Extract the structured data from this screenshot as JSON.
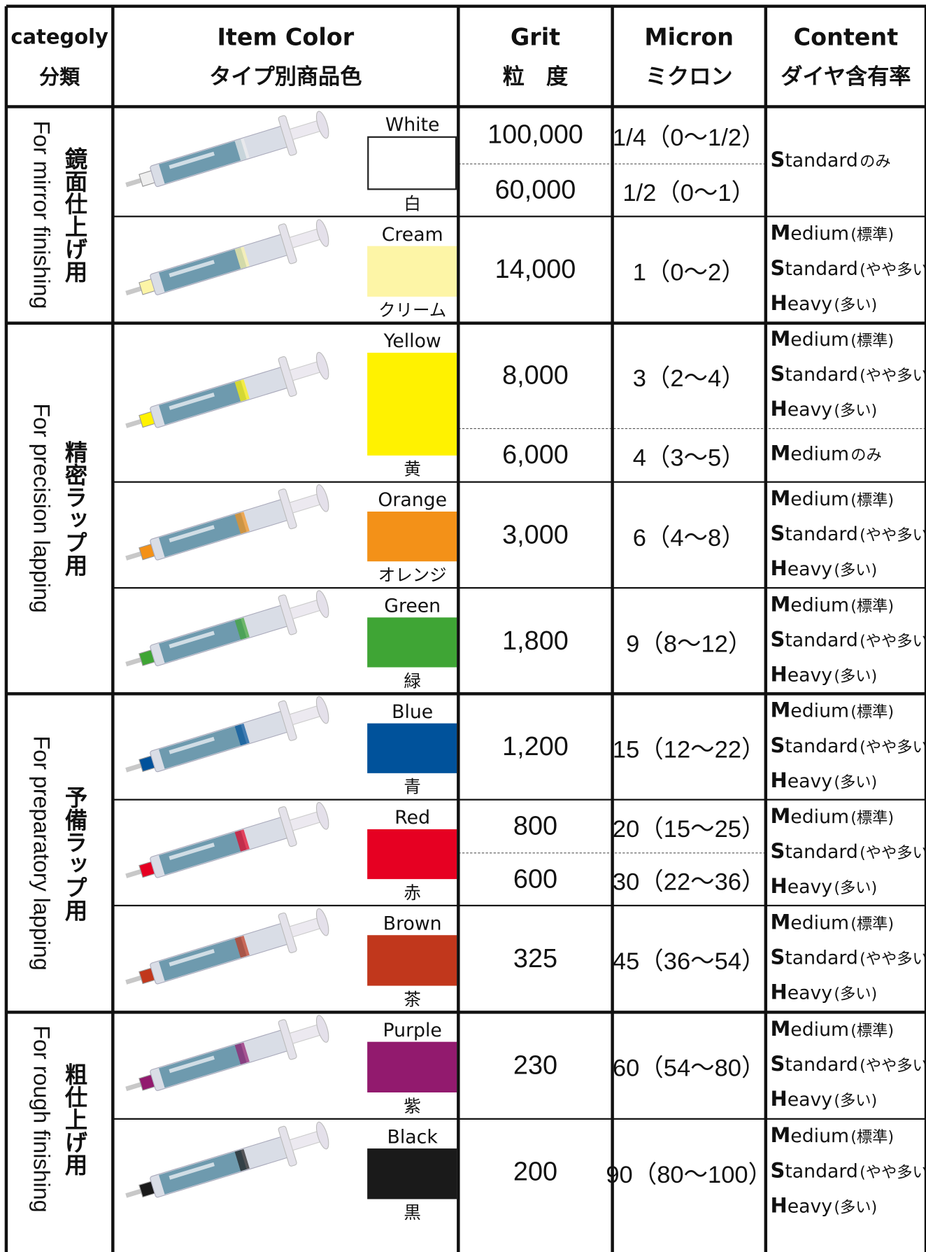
{
  "header": {
    "columns": [
      {
        "en": "categoly",
        "ja": "分類"
      },
      {
        "en": "Item Color",
        "ja": "タイプ別商品色"
      },
      {
        "en": "Grit",
        "ja": "粒　度"
      },
      {
        "en": "Micron",
        "ja": "ミクロン"
      },
      {
        "en": "Content",
        "ja": "ダイヤ含有率"
      }
    ]
  },
  "groups": [
    {
      "ja": "鏡面仕上げ用",
      "en": "For mirror finishing",
      "items": [
        {
          "color_en": "White",
          "color_ja": "白",
          "swatch": "#ffffff",
          "grades": [
            {
              "grit": "100,000",
              "micron": "1/4（0〜1/2）"
            },
            {
              "grit": "60,000",
              "micron": "1/2（0〜1）"
            }
          ],
          "content": [
            {
              "term": "Standard",
              "note": "のみ"
            }
          ]
        },
        {
          "color_en": "Cream",
          "color_ja": "クリーム",
          "swatch": "#fdf5a6",
          "grades": [
            {
              "grit": "14,000",
              "micron": "1（0〜2）"
            }
          ],
          "content": [
            {
              "term": "Medium",
              "note": "(標準)"
            },
            {
              "term": "Standard",
              "note": "(やや多い)"
            },
            {
              "term": "Heavy",
              "note": "(多い)"
            }
          ]
        }
      ]
    },
    {
      "ja": "精密ラップ用",
      "en": "For precision lapping",
      "items": [
        {
          "color_en": "Yellow",
          "color_ja": "黄",
          "swatch": "#fff200",
          "grades": [
            {
              "grit": "8,000",
              "micron": "3（2〜4）",
              "content": [
                {
                  "term": "Medium",
                  "note": "(標準)"
                },
                {
                  "term": "Standard",
                  "note": "(やや多い)"
                },
                {
                  "term": "Heavy",
                  "note": "(多い)"
                }
              ]
            },
            {
              "grit": "6,000",
              "micron": "4（3〜5）",
              "content": [
                {
                  "term": "Medium",
                  "note": "のみ"
                }
              ]
            }
          ]
        },
        {
          "color_en": "Orange",
          "color_ja": "オレンジ",
          "swatch": "#f39118",
          "grades": [
            {
              "grit": "3,000",
              "micron": "6（4〜8）"
            }
          ],
          "content": [
            {
              "term": "Medium",
              "note": "(標準)"
            },
            {
              "term": "Standard",
              "note": "(やや多い)"
            },
            {
              "term": "Heavy",
              "note": "(多い)"
            }
          ]
        },
        {
          "color_en": "Green",
          "color_ja": "緑",
          "swatch": "#3fa535",
          "grades": [
            {
              "grit": "1,800",
              "micron": "9（8〜12）"
            }
          ],
          "content": [
            {
              "term": "Medium",
              "note": "(標準)"
            },
            {
              "term": "Standard",
              "note": "(やや多い)"
            },
            {
              "term": "Heavy",
              "note": "(多い)"
            }
          ]
        }
      ]
    },
    {
      "ja": "予備ラップ用",
      "en": "For preparatory lapping",
      "items": [
        {
          "color_en": "Blue",
          "color_ja": "青",
          "swatch": "#00529b",
          "grades": [
            {
              "grit": "1,200",
              "micron": "15（12〜22）"
            }
          ],
          "content": [
            {
              "term": "Medium",
              "note": "(標準)"
            },
            {
              "term": "Standard",
              "note": "(やや多い)"
            },
            {
              "term": "Heavy",
              "note": "(多い)"
            }
          ]
        },
        {
          "color_en": "Red",
          "color_ja": "赤",
          "swatch": "#e60022",
          "grades": [
            {
              "grit": "800",
              "micron": "20（15〜25）"
            },
            {
              "grit": "600",
              "micron": "30（22〜36）"
            }
          ],
          "content": [
            {
              "term": "Medium",
              "note": "(標準)"
            },
            {
              "term": "Standard",
              "note": "(やや多い)"
            },
            {
              "term": "Heavy",
              "note": "(多い)"
            }
          ]
        },
        {
          "color_en": "Brown",
          "color_ja": "茶",
          "swatch": "#c1371c",
          "grades": [
            {
              "grit": "325",
              "micron": "45（36〜54）"
            }
          ],
          "content": [
            {
              "term": "Medium",
              "note": "(標準)"
            },
            {
              "term": "Standard",
              "note": "(やや多い)"
            },
            {
              "term": "Heavy",
              "note": "(多い)"
            }
          ]
        }
      ]
    },
    {
      "ja": "粗仕上げ用",
      "en": "For rough finishing",
      "items": [
        {
          "color_en": "Purple",
          "color_ja": "紫",
          "swatch": "#921a6e",
          "grades": [
            {
              "grit": "230",
              "micron": "60（54〜80）"
            }
          ],
          "content": [
            {
              "term": "Medium",
              "note": "(標準)"
            },
            {
              "term": "Standard",
              "note": "(やや多い)"
            },
            {
              "term": "Heavy",
              "note": "(多い)"
            }
          ]
        },
        {
          "color_en": "Black",
          "color_ja": "黒",
          "swatch": "#1a1a1a",
          "grades": [
            {
              "grit": "200",
              "micron": "90（80〜100）"
            }
          ],
          "content": [
            {
              "term": "Medium",
              "note": "(標準)"
            },
            {
              "term": "Standard",
              "note": "(やや多い)"
            },
            {
              "term": "Heavy",
              "note": "(多い)"
            }
          ]
        }
      ]
    }
  ]
}
